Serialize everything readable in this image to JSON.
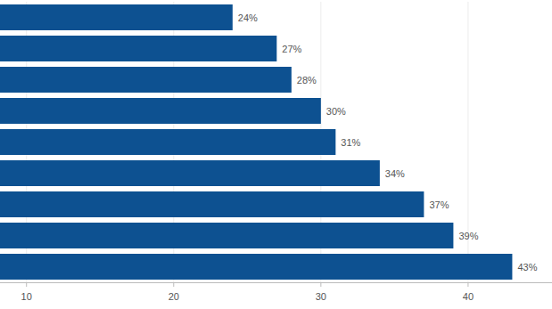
{
  "chart_data": {
    "type": "bar",
    "orientation": "horizontal",
    "categories": [
      null,
      null,
      null,
      null,
      null,
      null,
      null,
      null,
      null
    ],
    "values": [
      24,
      27,
      28,
      30,
      31,
      34,
      37,
      39,
      43
    ],
    "value_labels": [
      "24%",
      "27%",
      "28%",
      "30%",
      "31%",
      "34%",
      "37%",
      "39%",
      "43%"
    ],
    "data_labels": true,
    "color": "#0d5191",
    "xlim": [
      8.2,
      45.7
    ],
    "xticks": [
      10,
      20,
      30,
      40
    ],
    "grid": true
  }
}
